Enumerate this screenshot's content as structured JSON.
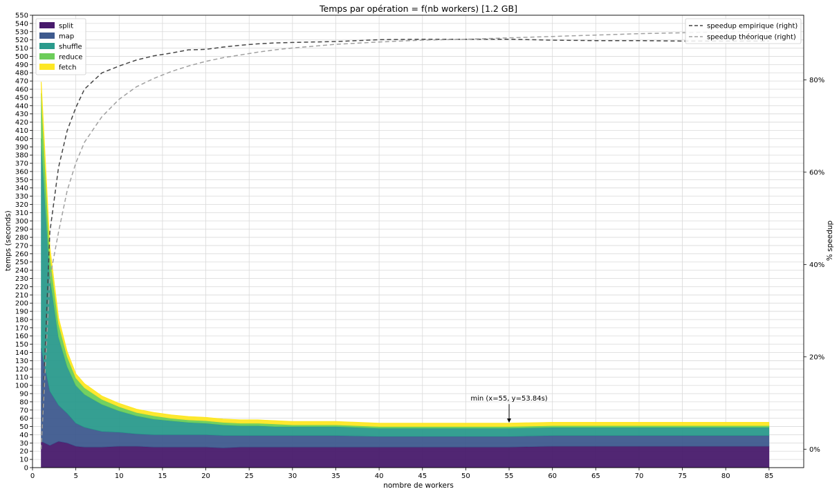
{
  "chart_data": {
    "type": "area",
    "title": "Temps par opération = f(nb workers) [1.2 GB]",
    "xlabel": "nombre de workers",
    "ylabel": "temps (seconds)",
    "y2label": "% speedup",
    "xlim": [
      0,
      89
    ],
    "ylim": [
      0,
      550
    ],
    "y2lim": [
      -4,
      94
    ],
    "xticks": [
      0,
      5,
      10,
      15,
      20,
      25,
      30,
      35,
      40,
      45,
      50,
      55,
      60,
      65,
      70,
      75,
      80,
      85
    ],
    "yticks_step": 10,
    "y2ticks": [
      0,
      20,
      40,
      60,
      80
    ],
    "y2tick_labels": [
      "0%",
      "20%",
      "40%",
      "60%",
      "80%"
    ],
    "grid": true,
    "legend_left": "top-left",
    "legend_right": "top-right",
    "x": [
      1,
      2,
      3,
      4,
      5,
      6,
      8,
      10,
      12,
      14,
      16,
      18,
      20,
      22,
      24,
      26,
      28,
      30,
      35,
      40,
      45,
      50,
      55,
      60,
      65,
      70,
      75,
      80,
      85
    ],
    "series": [
      {
        "name": "split",
        "color": "#481a6c",
        "values": [
          32,
          27,
          32,
          30,
          26,
          25,
          25,
          26,
          26,
          25,
          25,
          25,
          25,
          24,
          25,
          25,
          25,
          25,
          25,
          25,
          25,
          25,
          25,
          26,
          26,
          26,
          26,
          26,
          26
        ]
      },
      {
        "name": "map",
        "color": "#3e5a8e",
        "values": [
          113,
          66,
          44,
          36,
          28,
          24,
          19,
          17,
          15,
          15,
          15,
          15,
          15,
          15,
          14,
          14,
          14,
          14,
          14,
          13,
          13,
          13,
          13,
          13,
          13,
          13,
          13,
          13,
          13
        ]
      },
      {
        "name": "shuffle",
        "color": "#2a9a8c",
        "values": [
          255,
          140,
          83,
          57,
          46,
          40,
          33,
          26,
          22,
          19,
          17,
          15,
          14,
          13,
          12,
          12,
          11,
          11,
          11,
          10,
          10,
          10,
          10,
          10,
          10,
          10,
          10,
          10,
          10
        ]
      },
      {
        "name": "reduce",
        "color": "#6ccd5a",
        "values": [
          55,
          25,
          16,
          12,
          9,
          8,
          6,
          5,
          4,
          4,
          3,
          3,
          3,
          3,
          3,
          3,
          3,
          2,
          2,
          2,
          2,
          2,
          2,
          2,
          2,
          2,
          2,
          2,
          2
        ]
      },
      {
        "name": "fetch",
        "color": "#fde725",
        "values": [
          14,
          10,
          7,
          6,
          5,
          5,
          4,
          4,
          4,
          4,
          4,
          4,
          4,
          4,
          4,
          4,
          4,
          4,
          4,
          4,
          4,
          4,
          4,
          4,
          4,
          4,
          4,
          4,
          4
        ]
      }
    ],
    "lines": [
      {
        "name": "speedup empirique (right)",
        "color": "#444444",
        "axis": "right",
        "dash": "6,4",
        "x": [
          1,
          2,
          3,
          4,
          5,
          6,
          8,
          10,
          12,
          14,
          16,
          18,
          20,
          22,
          24,
          26,
          28,
          30,
          35,
          40,
          45,
          50,
          55,
          60,
          65,
          70,
          75,
          80,
          85
        ],
        "values": [
          0,
          47,
          61,
          69,
          74,
          78,
          81.5,
          83,
          84.3,
          85.2,
          85.8,
          86.5,
          86.6,
          87.1,
          87.5,
          87.8,
          88.0,
          88.1,
          88.3,
          88.7,
          88.8,
          88.8,
          88.8,
          88.6,
          88.5,
          88.5,
          88.4,
          88.4,
          88.4
        ]
      },
      {
        "name": "speedup théorique (right)",
        "color": "#a0a0a0",
        "axis": "right",
        "dash": "6,4",
        "x": [
          1,
          2,
          3,
          4,
          5,
          6,
          8,
          10,
          12,
          14,
          16,
          18,
          20,
          22,
          24,
          26,
          28,
          30,
          35,
          40,
          45,
          50,
          55,
          60,
          65,
          70,
          75,
          80,
          85
        ],
        "values": [
          0,
          37,
          47,
          56,
          62,
          66.5,
          72,
          75.8,
          78.5,
          80.3,
          81.8,
          83.0,
          84.0,
          84.8,
          85.4,
          86.0,
          86.5,
          86.9,
          87.7,
          88.2,
          88.6,
          88.8,
          89.1,
          89.4,
          89.7,
          90.0,
          90.2,
          90.4,
          90.5
        ]
      }
    ],
    "annotation": {
      "text": "min (x=55, y=53.84s)",
      "x": 55,
      "y": 53.84,
      "text_y": 73
    }
  }
}
